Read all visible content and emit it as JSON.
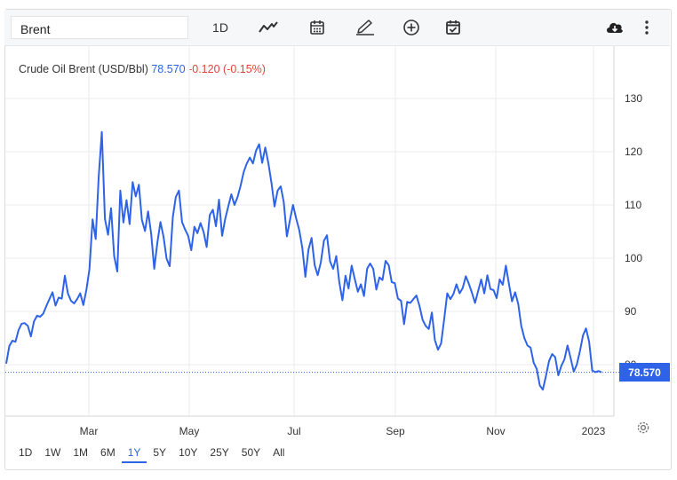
{
  "toolbar": {
    "search_value": "Brent",
    "interval_label": "1D",
    "icons": [
      "line-chart-icon",
      "calendar-icon",
      "pencil-icon",
      "plus-circle-icon",
      "calendar-check-icon",
      "cloud-download-icon",
      "more-vert-icon"
    ]
  },
  "title": {
    "name": "Crude Oil Brent (USD/Bbl)",
    "price": "78.570",
    "change": "-0.120 (-0.15%)"
  },
  "price_tag": "78.570",
  "ranges": [
    "1D",
    "5Y",
    "1M",
    "6M",
    "1Y",
    "5Y",
    "10Y",
    "25Y",
    "50Y",
    "All"
  ],
  "ranges_fixed": [
    "1D",
    "1W",
    "1M",
    "6M",
    "1Y",
    "5Y",
    "10Y",
    "25Y",
    "50Y",
    "All"
  ],
  "active_range": "1Y",
  "colors": {
    "line": "#2e63e8",
    "accent": "#2e63e8",
    "negative": "#e0443a",
    "grid": "#ebebeb"
  },
  "chart_data": {
    "type": "line",
    "title": "Crude Oil Brent (USD/Bbl)",
    "xlabel": "",
    "ylabel": "",
    "ylim": [
      77,
      137
    ],
    "yticks": [
      130,
      120,
      110,
      100,
      90,
      80
    ],
    "xticks": [
      "Mar",
      "May",
      "Jul",
      "Sep",
      "Nov",
      "2023"
    ],
    "grid": true,
    "current_value": 78.57,
    "series": [
      {
        "values": [
          80.2,
          83.5,
          84.5,
          84.3,
          86.5,
          87.7,
          87.8,
          87.3,
          85.3,
          88.1,
          89.2,
          89.0,
          89.6,
          91.0,
          92.3,
          93.6,
          91.1,
          92.6,
          92.4,
          96.7,
          93.4,
          92.0,
          91.5,
          92.3,
          93.4,
          91.2,
          94.1,
          98.0,
          107.3,
          103.6,
          115.3,
          123.7,
          107.4,
          104.4,
          109.4,
          100.4,
          97.5,
          112.7,
          106.7,
          110.9,
          106.4,
          114.3,
          111.6,
          113.8,
          107.2,
          105.1,
          108.8,
          104.5,
          98.0,
          102.9,
          106.8,
          104.1,
          99.9,
          98.5,
          107.7,
          111.5,
          112.7,
          106.8,
          105.4,
          104.2,
          101.5,
          105.9,
          104.7,
          106.6,
          104.9,
          102.1,
          108.1,
          109.1,
          106.0,
          111.0,
          104.2,
          107.4,
          109.7,
          112.0,
          110.0,
          111.5,
          113.6,
          116.2,
          117.8,
          118.9,
          117.8,
          120.2,
          121.4,
          117.9,
          120.8,
          117.8,
          114.2,
          109.7,
          112.7,
          113.5,
          110.5,
          104.1,
          107.2,
          110.0,
          107.5,
          105.3,
          101.9,
          96.5,
          101.6,
          103.8,
          98.7,
          96.8,
          99.2,
          103.3,
          104.3,
          99.4,
          98.0,
          100.4,
          95.5,
          92.1,
          96.7,
          94.3,
          98.6,
          96.1,
          93.7,
          95.1,
          92.9,
          98.0,
          99.0,
          98.0,
          94.1,
          96.4,
          95.9,
          99.5,
          98.7,
          95.5,
          95.3,
          92.4,
          92.0,
          87.6,
          91.8,
          91.6,
          92.3,
          93.0,
          91.0,
          88.4,
          87.3,
          86.7,
          89.8,
          84.6,
          82.8,
          84.0,
          88.6,
          93.4,
          92.3,
          93.3,
          95.1,
          93.4,
          94.4,
          96.6,
          95.2,
          93.5,
          91.6,
          93.8,
          96.0,
          93.4,
          96.8,
          94.2,
          94.0,
          92.5,
          96.0,
          95.0,
          98.6,
          95.1,
          91.9,
          93.6,
          91.4,
          87.3,
          85.0,
          83.6,
          83.2,
          80.4,
          79.2,
          76.1,
          75.3,
          77.9,
          80.7,
          82.0,
          81.4,
          78.0,
          79.8,
          81.0,
          83.6,
          81.2,
          78.7,
          80.0,
          82.5,
          85.5,
          86.8,
          84.3,
          78.9,
          78.6,
          78.8,
          78.57
        ]
      }
    ]
  }
}
